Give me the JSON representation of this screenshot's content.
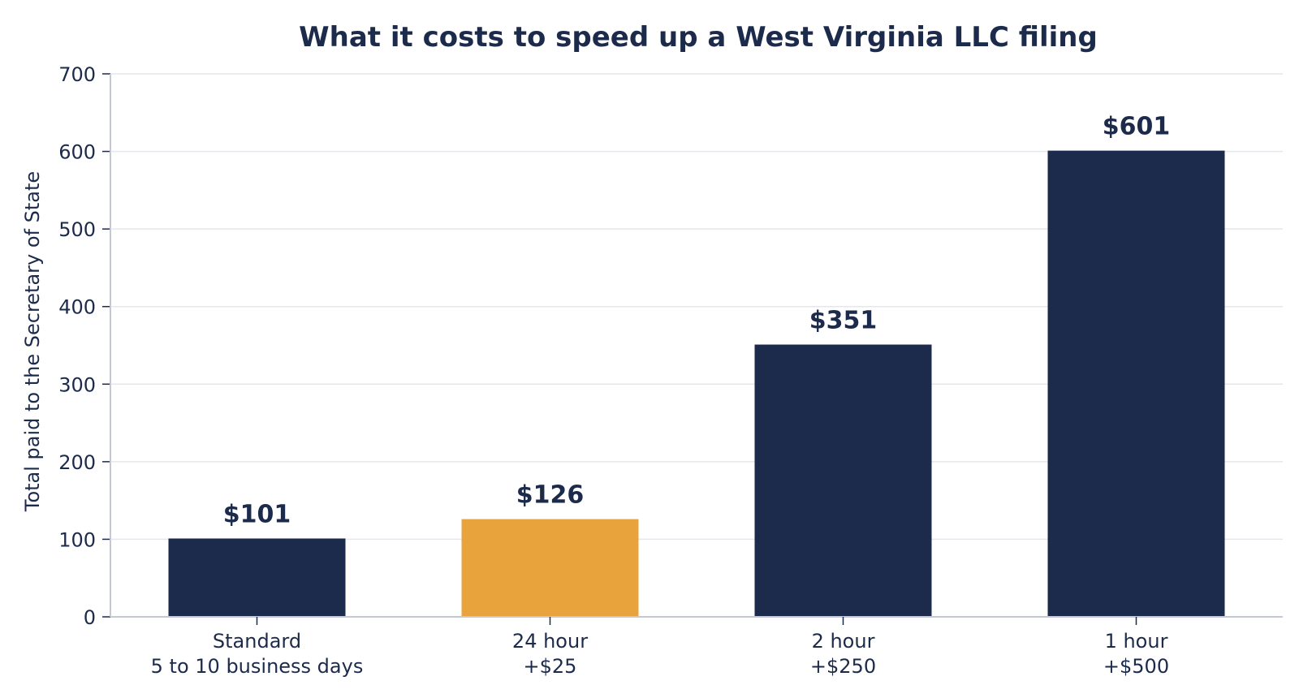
{
  "chart_data": {
    "type": "bar",
    "title": "What it costs to speed up a West Virginia LLC filing",
    "xlabel": "",
    "ylabel": "Total paid to the Secretary of State",
    "ylim": [
      0,
      700
    ],
    "yticks": [
      0,
      100,
      200,
      300,
      400,
      500,
      600,
      700
    ],
    "grid": true,
    "categories": [
      [
        "Standard",
        "5 to 10 business days"
      ],
      [
        "24 hour",
        "+$25"
      ],
      [
        "2 hour",
        "+$250"
      ],
      [
        "1 hour",
        "+$500"
      ]
    ],
    "values": [
      101,
      126,
      351,
      601
    ],
    "value_labels": [
      "$101",
      "$126",
      "$351",
      "$601"
    ],
    "highlight_index": 1,
    "colors": {
      "bar": "#1c2b4b",
      "highlight": "#e8a33d",
      "text": "#1c2b4b",
      "grid": "#e4e7ec",
      "axis": "#c5c9d2"
    }
  }
}
